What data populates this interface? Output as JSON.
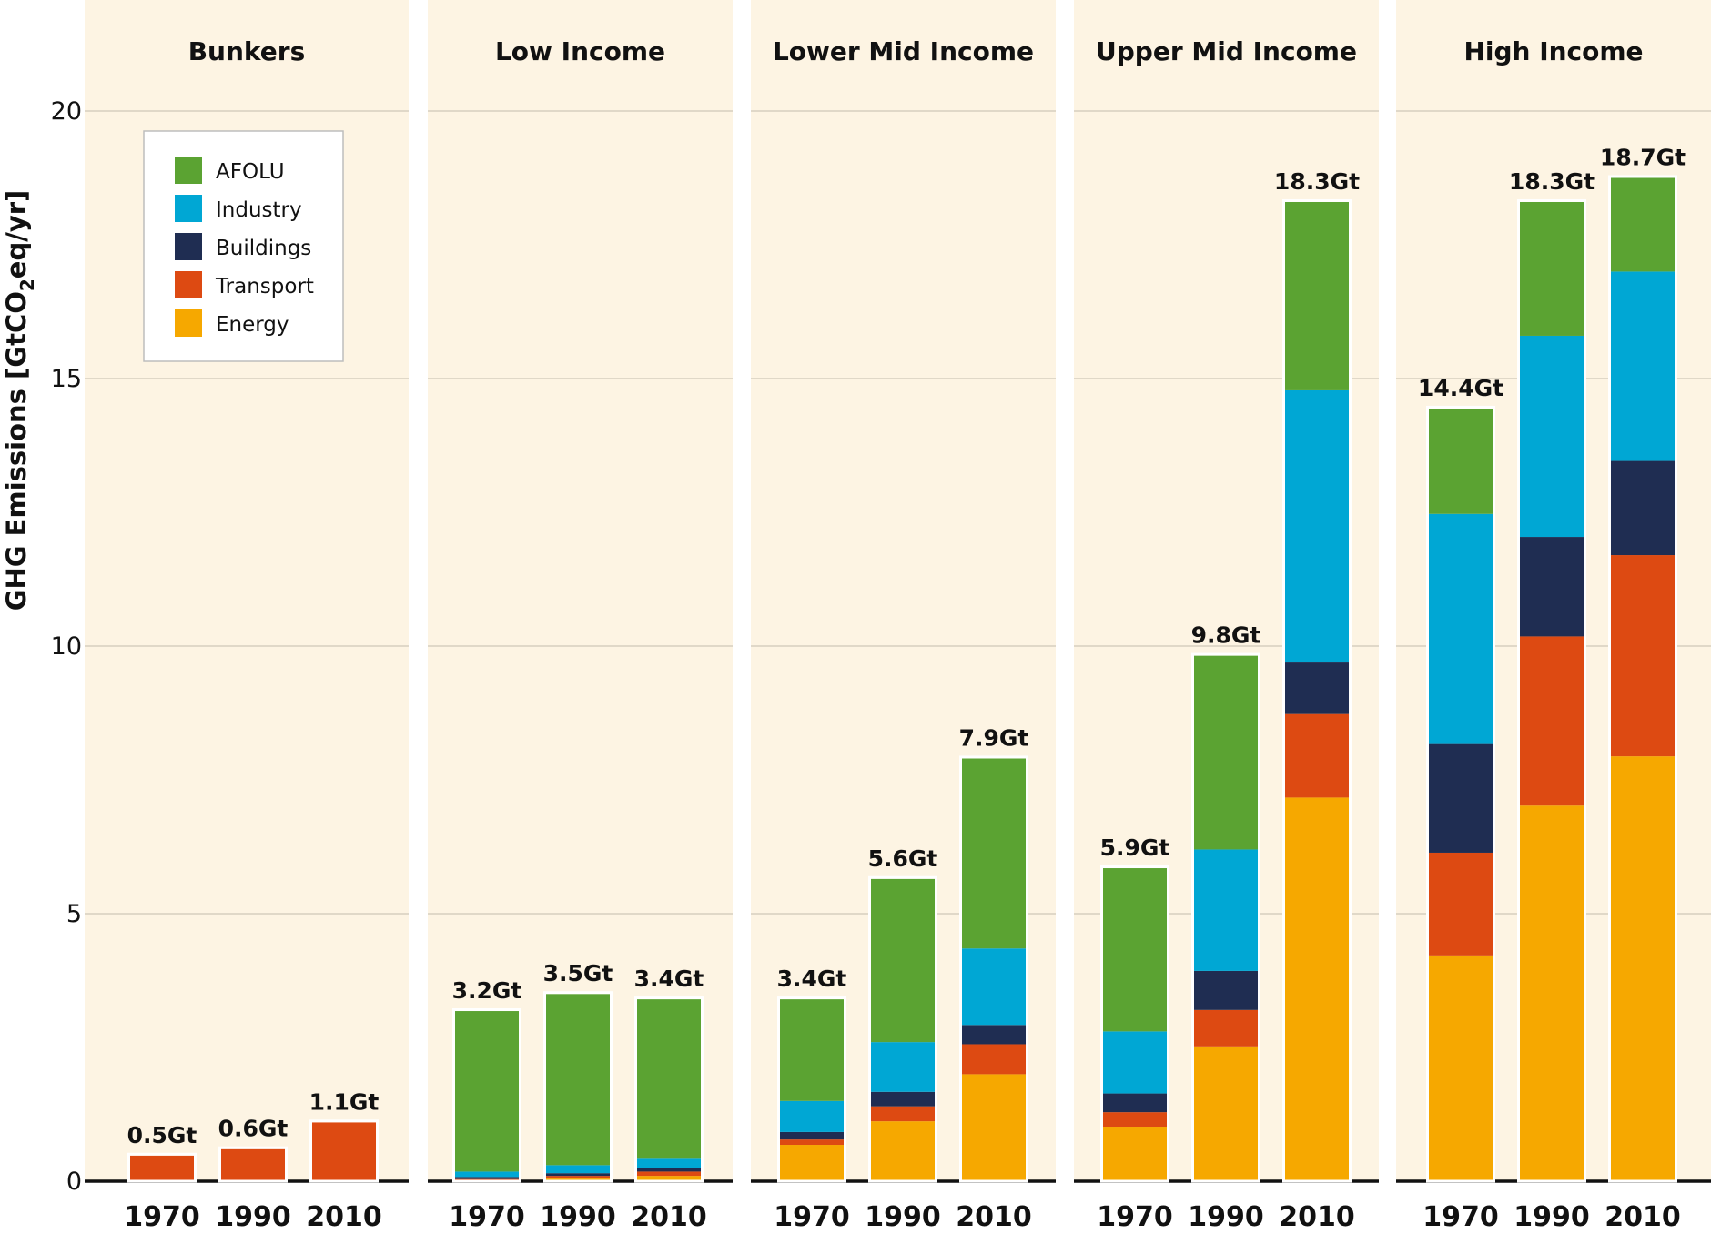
{
  "chart_data": {
    "type": "bar",
    "stacked": true,
    "ylabel": "GHG Emissions [GtCO2eq/yr]",
    "ylim": [
      0,
      22
    ],
    "yticks": [
      0,
      5,
      10,
      15,
      20
    ],
    "grid": true,
    "legend_position": "top-left",
    "sectors": [
      {
        "name": "AFOLU",
        "color": "#5ba332"
      },
      {
        "name": "Industry",
        "color": "#00a7d4"
      },
      {
        "name": "Buildings",
        "color": "#1f2d52"
      },
      {
        "name": "Transport",
        "color": "#dd4a12"
      },
      {
        "name": "Energy",
        "color": "#f6a800"
      }
    ],
    "years": [
      "1970",
      "1990",
      "2010"
    ],
    "panels": [
      {
        "title": "Bunkers",
        "bars": [
          {
            "year": "1970",
            "total_label": "0.5Gt",
            "values": {
              "Energy": 0,
              "Transport": 0.48,
              "Buildings": 0,
              "Industry": 0,
              "AFOLU": 0
            }
          },
          {
            "year": "1990",
            "total_label": "0.6Gt",
            "values": {
              "Energy": 0,
              "Transport": 0.6,
              "Buildings": 0,
              "Industry": 0,
              "AFOLU": 0
            }
          },
          {
            "year": "2010",
            "total_label": "1.1Gt",
            "values": {
              "Energy": 0,
              "Transport": 1.1,
              "Buildings": 0,
              "Industry": 0,
              "AFOLU": 0
            }
          }
        ]
      },
      {
        "title": "Low Income",
        "bars": [
          {
            "year": "1970",
            "total_label": "3.2Gt",
            "values": {
              "Energy": 0.02,
              "Transport": 0.02,
              "Buildings": 0.04,
              "Industry": 0.1,
              "AFOLU": 3.0
            }
          },
          {
            "year": "1990",
            "total_label": "3.5Gt",
            "values": {
              "Energy": 0.05,
              "Transport": 0.05,
              "Buildings": 0.05,
              "Industry": 0.15,
              "AFOLU": 3.2
            }
          },
          {
            "year": "2010",
            "total_label": "3.4Gt",
            "values": {
              "Energy": 0.1,
              "Transport": 0.08,
              "Buildings": 0.06,
              "Industry": 0.18,
              "AFOLU": 2.98
            }
          }
        ]
      },
      {
        "title": "Lower Mid Income",
        "bars": [
          {
            "year": "1970",
            "total_label": "3.4Gt",
            "values": {
              "Energy": 0.68,
              "Transport": 0.1,
              "Buildings": 0.14,
              "Industry": 0.58,
              "AFOLU": 1.9
            }
          },
          {
            "year": "1990",
            "total_label": "5.6Gt",
            "values": {
              "Energy": 1.12,
              "Transport": 0.28,
              "Buildings": 0.27,
              "Industry": 0.93,
              "AFOLU": 3.05
            }
          },
          {
            "year": "2010",
            "total_label": "7.9Gt",
            "values": {
              "Energy": 2.0,
              "Transport": 0.56,
              "Buildings": 0.36,
              "Industry": 1.43,
              "AFOLU": 3.55
            }
          }
        ]
      },
      {
        "title": "Upper Mid Income",
        "bars": [
          {
            "year": "1970",
            "total_label": "5.9Gt",
            "values": {
              "Energy": 1.02,
              "Transport": 0.27,
              "Buildings": 0.35,
              "Industry": 1.16,
              "AFOLU": 3.05
            }
          },
          {
            "year": "1990",
            "total_label": "9.8Gt",
            "values": {
              "Energy": 2.52,
              "Transport": 0.68,
              "Buildings": 0.73,
              "Industry": 2.27,
              "AFOLU": 3.62
            }
          },
          {
            "year": "2010",
            "total_label": "18.3Gt",
            "values": {
              "Energy": 7.17,
              "Transport": 1.56,
              "Buildings": 0.98,
              "Industry": 5.07,
              "AFOLU": 3.52
            }
          }
        ]
      },
      {
        "title": "High Income",
        "bars": [
          {
            "year": "1970",
            "total_label": "14.4Gt",
            "values": {
              "Energy": 4.22,
              "Transport": 1.92,
              "Buildings": 2.03,
              "Industry": 4.3,
              "AFOLU": 1.97
            }
          },
          {
            "year": "1990",
            "total_label": "18.3Gt",
            "values": {
              "Energy": 7.02,
              "Transport": 3.16,
              "Buildings": 1.86,
              "Industry": 3.76,
              "AFOLU": 2.5
            }
          },
          {
            "year": "2010",
            "total_label": "18.7Gt",
            "values": {
              "Energy": 7.94,
              "Transport": 3.76,
              "Buildings": 1.76,
              "Industry": 3.54,
              "AFOLU": 1.75
            }
          }
        ]
      }
    ]
  }
}
